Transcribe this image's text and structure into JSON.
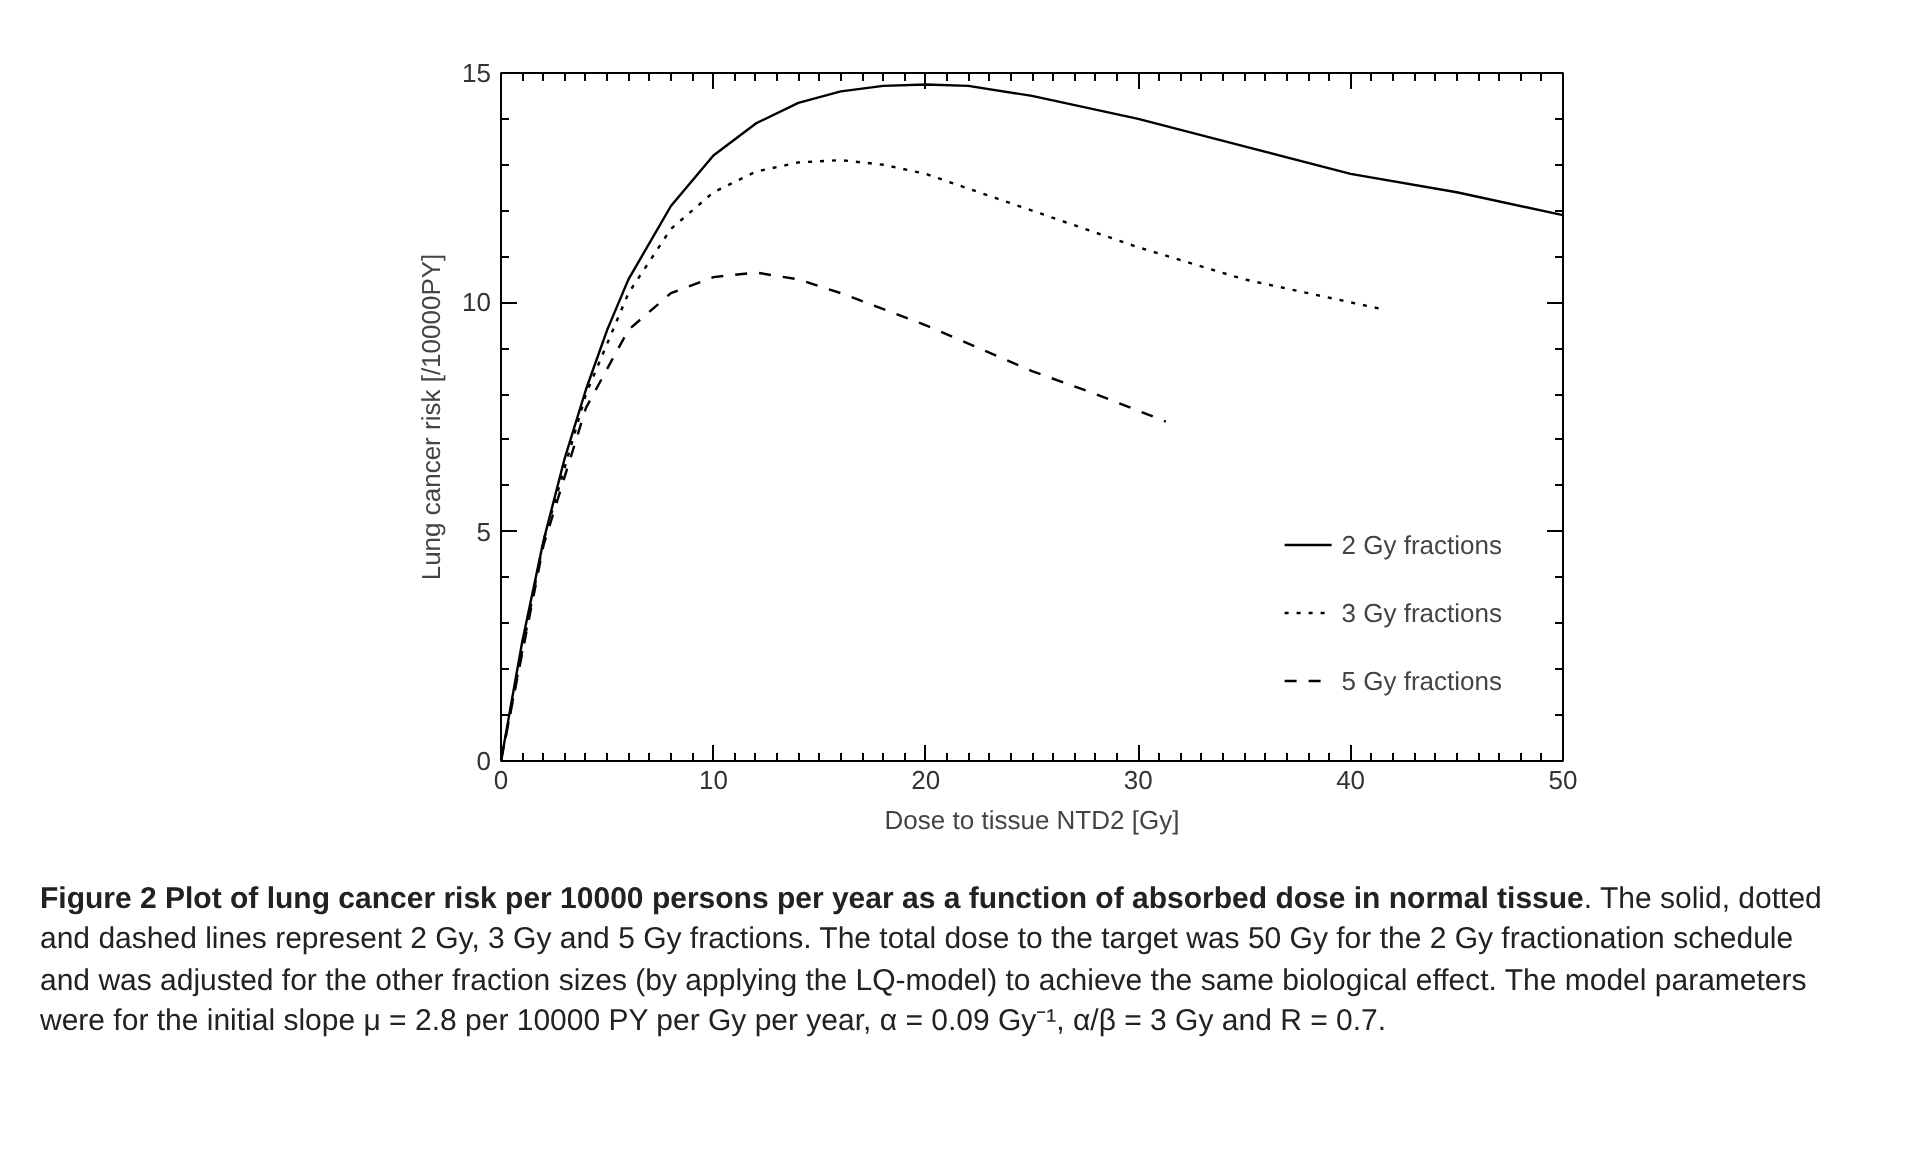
{
  "chart_data": {
    "type": "line",
    "title": "Figure 2 Plot of lung cancer risk per 10000 persons per year as a function of absorbed dose in normal tissue",
    "annotations": [
      ". The solid, dotted and dashed lines represent 2 Gy, 3 Gy and 5 Gy fractions. The total dose to the target was 50 Gy for the 2 Gy fractionation schedule and was adjusted for the other fraction sizes (by applying the LQ-model) to achieve the same biological effect. The model parameters were for the initial slope μ = 2.8 per 10000 PY per Gy per year, α = 0.09 Gy⁻¹, α/β = 3 Gy and R = 0.7."
    ],
    "xlabel": "Dose to tissue NTD2 [Gy]",
    "ylabel": "Lung cancer risk [/10000PY]",
    "xlim": [
      0,
      50
    ],
    "ylim": [
      0,
      15
    ],
    "xticks": [
      0,
      10,
      20,
      30,
      40,
      50
    ],
    "yticks": [
      0,
      5,
      10,
      15
    ],
    "grid": false,
    "legend": "bottom right",
    "series": [
      {
        "name": "2 Gy fractions",
        "color": "#000000",
        "line_style": "solid",
        "x": [
          0,
          1,
          2,
          3,
          4,
          5,
          6,
          8,
          10,
          12,
          14,
          16,
          18,
          20,
          22,
          25,
          30,
          35,
          40,
          45,
          50
        ],
        "values": [
          0,
          2.6,
          4.8,
          6.6,
          8.1,
          9.4,
          10.5,
          12.1,
          13.2,
          13.9,
          14.35,
          14.6,
          14.72,
          14.75,
          14.72,
          14.5,
          14.0,
          13.4,
          12.8,
          12.4,
          11.9
        ]
      },
      {
        "name": "3 Gy fractions",
        "color": "#000000",
        "line_style": "dotted",
        "x": [
          0,
          2,
          4,
          6,
          8,
          10,
          12,
          14,
          16,
          18,
          20,
          25,
          30,
          35,
          41.5
        ],
        "values": [
          0,
          4.8,
          8.0,
          10.2,
          11.6,
          12.4,
          12.85,
          13.05,
          13.1,
          13.0,
          12.8,
          12.0,
          11.2,
          10.5,
          9.85
        ]
      },
      {
        "name": "5 Gy fractions",
        "color": "#000000",
        "line_style": "dashed",
        "x": [
          0,
          2,
          4,
          6,
          8,
          10,
          12,
          14,
          16,
          20,
          25,
          28,
          31.3
        ],
        "values": [
          0,
          4.7,
          7.7,
          9.4,
          10.2,
          10.55,
          10.65,
          10.5,
          10.2,
          9.5,
          8.5,
          8.0,
          7.4
        ]
      }
    ]
  }
}
